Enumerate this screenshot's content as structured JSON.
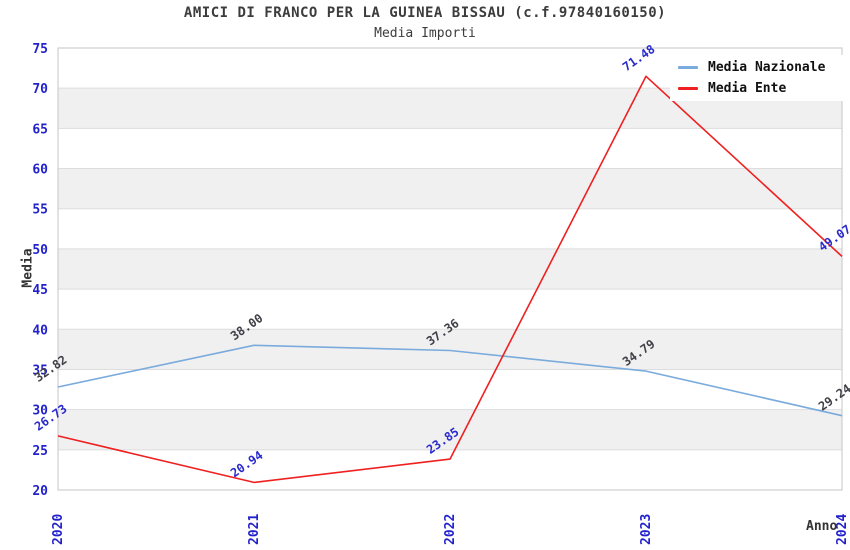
{
  "chart_data": {
    "type": "line",
    "title": "AMICI DI FRANCO PER LA GUINEA BISSAU (c.f.97840160150)",
    "subtitle": "Media Importi",
    "xlabel": "Anno",
    "ylabel": "Media",
    "categories": [
      "2020",
      "2021",
      "2022",
      "2023",
      "2024"
    ],
    "ylim": [
      20,
      75
    ],
    "ytick_step": 5,
    "grid": true,
    "legend_position": "top-right",
    "series": [
      {
        "name": "Media Nazionale",
        "color": "#7aabdc",
        "label_color": "#404048",
        "values": [
          32.82,
          38.0,
          37.36,
          34.79,
          29.24
        ]
      },
      {
        "name": "Media Ente",
        "color": "#ef2020",
        "label_color": "#2a2acc",
        "values": [
          26.73,
          20.94,
          23.85,
          71.48,
          49.07
        ]
      }
    ],
    "colors": {
      "tick_label": "#2222cc",
      "axis_label": "#333333",
      "title_text": "#3c3c3c",
      "band_main": "#ffffff",
      "band_alt": "#f0f0f0",
      "gridline": "#dddddd",
      "plot_border": "#c6c6c6",
      "legend_text": "#111111",
      "background": "#ffffff"
    }
  }
}
